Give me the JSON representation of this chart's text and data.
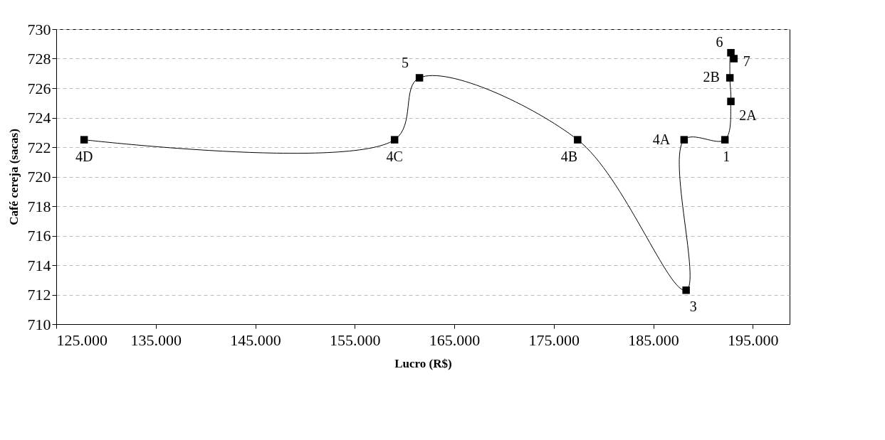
{
  "chart_data": {
    "type": "line",
    "xlabel": "Lucro (R$)",
    "ylabel": "Café cereja (sacas)",
    "x": [
      127800,
      159000,
      161500,
      177400,
      188300,
      188100,
      192200,
      192800,
      192700,
      192800,
      193100
    ],
    "series": [
      {
        "color": "#000000",
        "values": [
          722.5,
          722.5,
          726.7,
          722.5,
          712.3,
          722.5,
          722.5,
          725.1,
          726.7,
          728.4,
          728.0
        ]
      }
    ],
    "annotations": [
      {
        "text": "4D",
        "x": 127800,
        "y": 722.5
      },
      {
        "text": "4C",
        "x": 159000,
        "y": 722.5
      },
      {
        "text": "5",
        "x": 161500,
        "y": 726.7
      },
      {
        "text": "4B",
        "x": 177400,
        "y": 722.5
      },
      {
        "text": "3",
        "x": 188300,
        "y": 712.3
      },
      {
        "text": "4A",
        "x": 188100,
        "y": 722.5
      },
      {
        "text": "1",
        "x": 192200,
        "y": 722.5
      },
      {
        "text": "2A",
        "x": 192800,
        "y": 725.1
      },
      {
        "text": "2B",
        "x": 192700,
        "y": 726.7
      },
      {
        "text": "6",
        "x": 192800,
        "y": 728.4
      },
      {
        "text": "7",
        "x": 193100,
        "y": 728.0
      }
    ],
    "xlim": [
      125000,
      198700
    ],
    "xticks": [
      {
        "value": 125000,
        "label": "125.000"
      },
      {
        "value": 135000,
        "label": "135.000"
      },
      {
        "value": 145000,
        "label": "145.000"
      },
      {
        "value": 155000,
        "label": "155.000"
      },
      {
        "value": 165000,
        "label": "165.000"
      },
      {
        "value": 175000,
        "label": "175.000"
      },
      {
        "value": 185000,
        "label": "185.000"
      },
      {
        "value": 195000,
        "label": "195.000"
      }
    ],
    "ylim": [
      710,
      730
    ],
    "yticks": [
      710,
      712,
      714,
      716,
      718,
      720,
      722,
      724,
      726,
      728,
      730
    ],
    "grid": "y",
    "marker": "square",
    "line_style": "solid"
  }
}
